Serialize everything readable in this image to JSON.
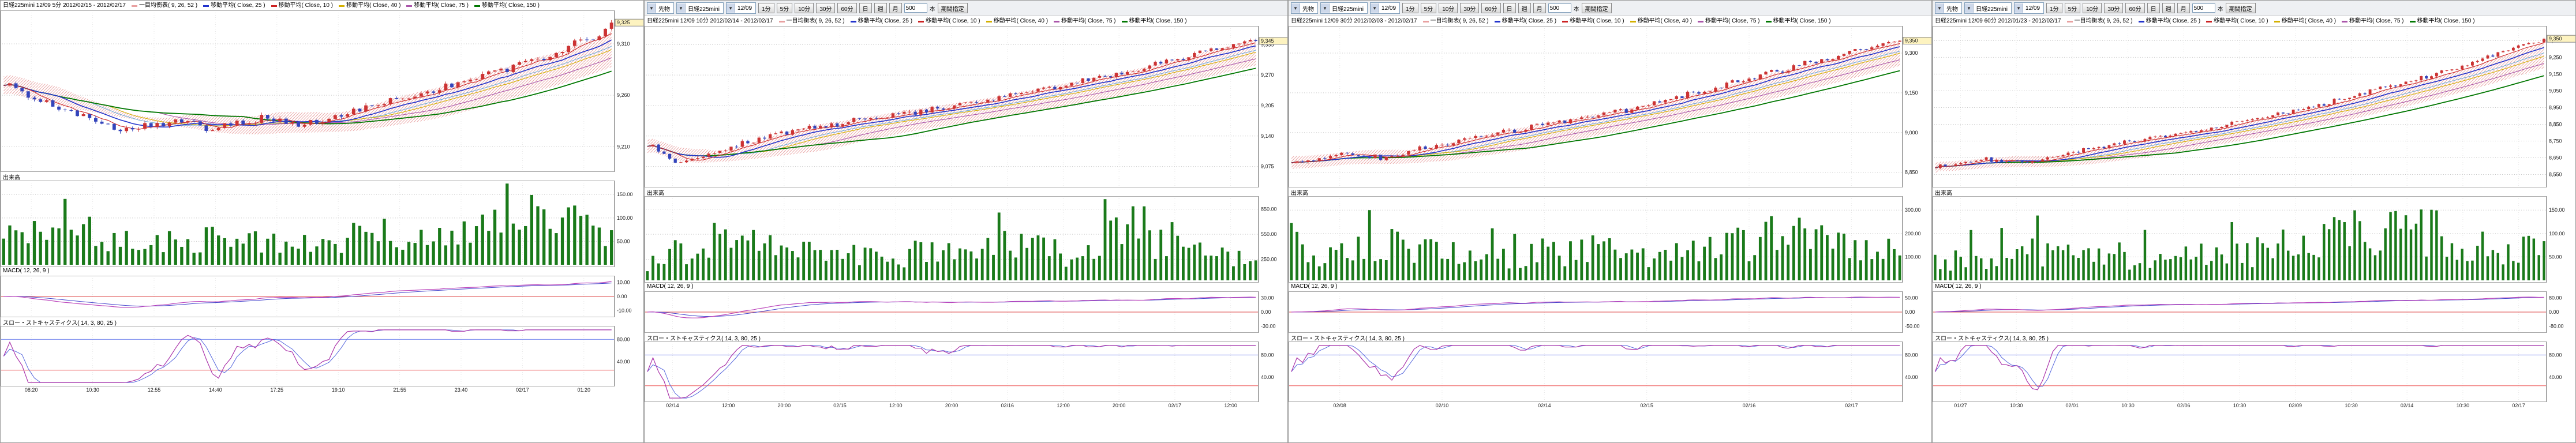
{
  "colors": {
    "up_candle": "#cc3333",
    "down_candle": "#3344bb",
    "volume_bar": "#1a7a1a",
    "grid": "#c8c8c8",
    "axis_text": "#222222",
    "ma10": "#cc2222",
    "ma25": "#2233cc",
    "ma40": "#d4b000",
    "ma75": "#aa55aa",
    "ma150": "#007700",
    "ichimoku": "#e8a0a0",
    "macd_line": "#bb44bb",
    "macd_signal": "#4444cc",
    "macd_zero": "#dd4444",
    "stoch_k": "#aa33aa",
    "stoch_d": "#5566dd",
    "stoch_high": "#7788ee",
    "stoch_low": "#ee5555"
  },
  "panels": [
    {
      "seed": 101,
      "bars": 100,
      "toolbar": null,
      "title": "日経225mini 12/09 5分 2012/02/15 - 2012/02/17",
      "legend": [
        {
          "label": "一目均衡表( 9, 26, 52 )",
          "color": "#e8a0a0"
        },
        {
          "label": "移動平均( Close, 25 )",
          "color": "#2233cc"
        },
        {
          "label": "移動平均( Close, 10 )",
          "color": "#cc2222"
        },
        {
          "label": "移動平均( Close, 40 )",
          "color": "#d4b000"
        },
        {
          "label": "移動平均( Close, 75 )",
          "color": "#aa55aa"
        },
        {
          "label": "移動平均( Close, 150 )",
          "color": "#007700"
        }
      ],
      "price": {
        "ylim": [
          9190,
          9338
        ],
        "ticks": [
          {
            "label": "9,310",
            "value": 9310
          },
          {
            "label": "9,260",
            "value": 9260
          },
          {
            "label": "9,210",
            "value": 9210
          }
        ],
        "anchors": [
          [
            0,
            9272
          ],
          [
            0.05,
            9256
          ],
          [
            0.12,
            9242
          ],
          [
            0.2,
            9227
          ],
          [
            0.27,
            9235
          ],
          [
            0.34,
            9229
          ],
          [
            0.42,
            9238
          ],
          [
            0.5,
            9231
          ],
          [
            0.57,
            9243
          ],
          [
            0.64,
            9255
          ],
          [
            0.72,
            9267
          ],
          [
            0.8,
            9281
          ],
          [
            0.88,
            9295
          ],
          [
            0.94,
            9309
          ],
          [
            1,
            9326
          ]
        ],
        "noise": 5,
        "last_label": "9,325"
      },
      "volume": {
        "label": "出来高",
        "max": 170,
        "ticks": [
          {
            "label": "150.00",
            "value": 150
          },
          {
            "label": "100.00",
            "value": 100
          },
          {
            "label": "50.00",
            "value": 50
          }
        ],
        "envelope": [
          [
            0,
            0.55
          ],
          [
            0.08,
            0.95
          ],
          [
            0.2,
            0.45
          ],
          [
            0.35,
            0.5
          ],
          [
            0.5,
            0.4
          ],
          [
            0.62,
            0.6
          ],
          [
            0.7,
            0.45
          ],
          [
            0.8,
            0.75
          ],
          [
            0.88,
            1.0
          ],
          [
            1,
            0.6
          ]
        ]
      },
      "macd": {
        "label": "MACD( 12, 26, 9 )",
        "ticks": [
          "10.00",
          "0.00",
          "-10.00"
        ]
      },
      "stoch": {
        "label": "スロー・ストキャスティクス( 14, 3, 80, 25 )",
        "high": 80,
        "low": 25,
        "ticks": [
          {
            "label": "80.00",
            "value": 80
          },
          {
            "label": "40.00",
            "value": 40
          }
        ]
      },
      "time_labels": [
        "08:20",
        "10:30",
        "12:55",
        "14:40",
        "17:25",
        "19:10",
        "21:55",
        "23:40",
        "02/17",
        "01:20"
      ]
    },
    {
      "seed": 202,
      "bars": 110,
      "toolbar": {
        "selects": [
          {
            "value": "先物"
          },
          {
            "value": "日経225mini"
          },
          {
            "value": "12/09"
          }
        ],
        "period_buttons": [
          "1分",
          "5分",
          "10分",
          "30分",
          "60分",
          "日",
          "週",
          "月"
        ],
        "bars_value": "500",
        "bars_unit": "本",
        "buttons": [
          "期間指定"
        ]
      },
      "title": "日経225mini 12/09 10分 2012/02/14 - 2012/02/17",
      "legend": [
        {
          "label": "一目均衡表( 9, 26, 52 )",
          "color": "#e8a0a0"
        },
        {
          "label": "移動平均( Close, 25 )",
          "color": "#2233cc"
        },
        {
          "label": "移動平均( Close, 10 )",
          "color": "#cc2222"
        },
        {
          "label": "移動平均( Close, 40 )",
          "color": "#d4b000"
        },
        {
          "label": "移動平均( Close, 75 )",
          "color": "#aa55aa"
        },
        {
          "label": "移動平均( Close, 150 )",
          "color": "#007700"
        }
      ],
      "price": {
        "ylim": [
          9040,
          9365
        ],
        "ticks": [
          {
            "label": "9,335",
            "value": 9335
          },
          {
            "label": "9,270",
            "value": 9270
          },
          {
            "label": "9,205",
            "value": 9205
          },
          {
            "label": "9,140",
            "value": 9140
          },
          {
            "label": "9,075",
            "value": 9075
          }
        ],
        "anchors": [
          [
            0,
            9122
          ],
          [
            0.05,
            9084
          ],
          [
            0.12,
            9108
          ],
          [
            0.2,
            9142
          ],
          [
            0.3,
            9163
          ],
          [
            0.4,
            9184
          ],
          [
            0.5,
            9201
          ],
          [
            0.6,
            9226
          ],
          [
            0.7,
            9251
          ],
          [
            0.8,
            9281
          ],
          [
            0.9,
            9316
          ],
          [
            1,
            9346
          ]
        ],
        "noise": 8,
        "last_label": "9,345"
      },
      "volume": {
        "label": "出来高",
        "max": 950,
        "ticks": [
          {
            "label": "850.00",
            "value": 850
          },
          {
            "label": "550.00",
            "value": 550
          },
          {
            "label": "250.00",
            "value": 250
          }
        ],
        "envelope": [
          [
            0,
            0.3
          ],
          [
            0.1,
            0.8
          ],
          [
            0.25,
            0.5
          ],
          [
            0.4,
            0.45
          ],
          [
            0.55,
            0.7
          ],
          [
            0.7,
            0.5
          ],
          [
            0.8,
            1.0
          ],
          [
            0.9,
            0.6
          ],
          [
            1,
            0.45
          ]
        ]
      },
      "macd": {
        "label": "MACD( 12, 26, 9 )",
        "ticks": [
          "30.00",
          "0.00",
          "-30.00"
        ]
      },
      "stoch": {
        "label": "スロー・ストキャスティクス( 14, 3, 80, 25 )",
        "high": 80,
        "low": 25,
        "ticks": [
          {
            "label": "80.00",
            "value": 80
          },
          {
            "label": "40.00",
            "value": 40
          }
        ]
      },
      "time_labels": [
        "02/14",
        "12:00",
        "20:00",
        "02/15",
        "12:00",
        "20:00",
        "02/16",
        "12:00",
        "20:00",
        "02/17",
        "12:00"
      ]
    },
    {
      "seed": 303,
      "bars": 110,
      "toolbar": {
        "selects": [
          {
            "value": "先物"
          },
          {
            "value": "日経225mini"
          },
          {
            "value": "12/09"
          }
        ],
        "period_buttons": [
          "1分",
          "5分",
          "10分",
          "30分",
          "60分",
          "日",
          "週",
          "月"
        ],
        "bars_value": "500",
        "bars_unit": "本",
        "buttons": [
          "期間指定"
        ]
      },
      "title": "日経225mini 12/09 30分 2012/02/03 - 2012/02/17",
      "legend": [
        {
          "label": "一目均衡表( 9, 26, 52 )",
          "color": "#e8a0a0"
        },
        {
          "label": "移動平均( Close, 25 )",
          "color": "#2233cc"
        },
        {
          "label": "移動平均( Close, 10 )",
          "color": "#cc2222"
        },
        {
          "label": "移動平均( Close, 40 )",
          "color": "#d4b000"
        },
        {
          "label": "移動平均( Close, 75 )",
          "color": "#aa55aa"
        },
        {
          "label": "移動平均( Close, 150 )",
          "color": "#007700"
        }
      ],
      "price": {
        "ylim": [
          8810,
          9385
        ],
        "ticks": [
          {
            "label": "9,300",
            "value": 9300
          },
          {
            "label": "9,150",
            "value": 9150
          },
          {
            "label": "9,000",
            "value": 9000
          },
          {
            "label": "8,850",
            "value": 8850
          }
        ],
        "anchors": [
          [
            0,
            8878
          ],
          [
            0.08,
            8922
          ],
          [
            0.15,
            8902
          ],
          [
            0.25,
            8958
          ],
          [
            0.35,
            9002
          ],
          [
            0.45,
            9043
          ],
          [
            0.55,
            9082
          ],
          [
            0.65,
            9142
          ],
          [
            0.75,
            9201
          ],
          [
            0.85,
            9262
          ],
          [
            0.93,
            9312
          ],
          [
            1,
            9352
          ]
        ],
        "noise": 13,
        "last_label": "9,350"
      },
      "volume": {
        "label": "出来高",
        "max": 340,
        "ticks": [
          {
            "label": "300.00",
            "value": 300
          },
          {
            "label": "200.00",
            "value": 200
          },
          {
            "label": "100.00",
            "value": 100
          }
        ],
        "envelope": [
          [
            0,
            0.5
          ],
          [
            0.15,
            0.7
          ],
          [
            0.3,
            0.45
          ],
          [
            0.5,
            0.6
          ],
          [
            0.65,
            0.5
          ],
          [
            0.8,
            0.9
          ],
          [
            0.9,
            0.65
          ],
          [
            1,
            0.5
          ]
        ]
      },
      "macd": {
        "label": "MACD( 12, 26, 9 )",
        "ticks": [
          "50.00",
          "0.00",
          "-50.00"
        ]
      },
      "stoch": {
        "label": "スロー・ストキャスティクス( 14, 3, 80, 25 )",
        "high": 80,
        "low": 25,
        "ticks": [
          {
            "label": "80.00",
            "value": 80
          },
          {
            "label": "40.00",
            "value": 40
          }
        ]
      },
      "time_labels": [
        "02/08",
        "02/10",
        "02/14",
        "02/15",
        "02/16",
        "02/17"
      ]
    },
    {
      "seed": 404,
      "bars": 120,
      "toolbar": {
        "selects": [
          {
            "value": "先物"
          },
          {
            "value": "日経225mini"
          },
          {
            "value": "12/09"
          }
        ],
        "period_buttons": [
          "1分",
          "5分",
          "10分",
          "30分",
          "60分",
          "日",
          "週",
          "月"
        ],
        "bars_value": "500",
        "bars_unit": "本",
        "buttons": [
          "期間指定"
        ]
      },
      "title": "日経225mini 12/09 60分 2012/01/23 - 2012/02/17",
      "legend": [
        {
          "label": "一目均衡表( 9, 26, 52 )",
          "color": "#e8a0a0"
        },
        {
          "label": "移動平均( Close, 25 )",
          "color": "#2233cc"
        },
        {
          "label": "移動平均( Close, 10 )",
          "color": "#cc2222"
        },
        {
          "label": "移動平均( Close, 40 )",
          "color": "#d4b000"
        },
        {
          "label": "移動平均( Close, 75 )",
          "color": "#aa55aa"
        },
        {
          "label": "移動平均( Close, 150 )",
          "color": "#007700"
        }
      ],
      "price": {
        "ylim": [
          8500,
          9410
        ],
        "ticks": [
          {
            "label": "9,350",
            "value": 9350
          },
          {
            "label": "9,250",
            "value": 9250
          },
          {
            "label": "9,150",
            "value": 9150
          },
          {
            "label": "9,050",
            "value": 9050
          },
          {
            "label": "8,950",
            "value": 8950
          },
          {
            "label": "8,850",
            "value": 8850
          },
          {
            "label": "8,750",
            "value": 8750
          },
          {
            "label": "8,650",
            "value": 8650
          },
          {
            "label": "8,550",
            "value": 8550
          }
        ],
        "anchors": [
          [
            0,
            8592
          ],
          [
            0.08,
            8642
          ],
          [
            0.15,
            8618
          ],
          [
            0.25,
            8702
          ],
          [
            0.35,
            8762
          ],
          [
            0.45,
            8822
          ],
          [
            0.55,
            8902
          ],
          [
            0.65,
            8982
          ],
          [
            0.75,
            9082
          ],
          [
            0.85,
            9182
          ],
          [
            0.93,
            9282
          ],
          [
            1,
            9352
          ]
        ],
        "noise": 16,
        "last_label": "9,350"
      },
      "volume": {
        "label": "出来高",
        "max": 170,
        "ticks": [
          {
            "label": "150.00",
            "value": 150
          },
          {
            "label": "100.00",
            "value": 100
          },
          {
            "label": "50.00",
            "value": 50
          }
        ],
        "envelope": [
          [
            0,
            0.35
          ],
          [
            0.15,
            0.55
          ],
          [
            0.3,
            0.4
          ],
          [
            0.5,
            0.5
          ],
          [
            0.65,
            0.8
          ],
          [
            0.78,
            1.0
          ],
          [
            0.9,
            0.7
          ],
          [
            1,
            0.55
          ]
        ]
      },
      "macd": {
        "label": "MACD( 12, 26, 9 )",
        "ticks": [
          "80.00",
          "0.00",
          "-80.00"
        ]
      },
      "stoch": {
        "label": "スロー・ストキャスティクス( 14, 3, 80, 25 )",
        "high": 80,
        "low": 25,
        "ticks": [
          {
            "label": "80.00",
            "value": 80
          },
          {
            "label": "40.00",
            "value": 40
          }
        ]
      },
      "time_labels": [
        "01/27",
        "10:30",
        "02/01",
        "10:30",
        "02/06",
        "10:30",
        "02/09",
        "10:30",
        "02/14",
        "10:30",
        "02/17"
      ]
    }
  ]
}
